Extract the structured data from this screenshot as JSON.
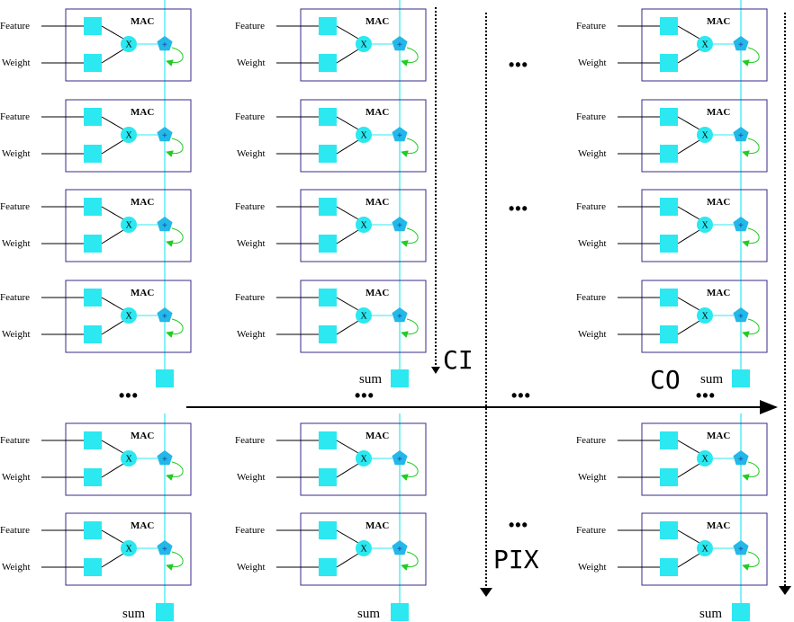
{
  "colors": {
    "cell_border": "#3a2a8a",
    "cyan": "#2ce8f0",
    "pentagon": "#22b8e8",
    "feedback": "#22cc22",
    "line": "#000000"
  },
  "mac_cell": {
    "title": "MAC",
    "feature_label": "Feature",
    "weight_label": "Weight",
    "multiply_symbol": "X",
    "add_symbol": "+"
  },
  "sum_label": "sum",
  "ellipsis": "•••",
  "axes": {
    "ci": "CI",
    "co": "CO",
    "pix": "PIX"
  }
}
